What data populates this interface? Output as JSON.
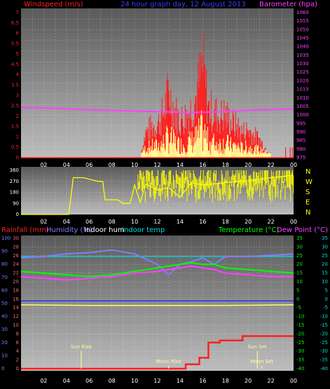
{
  "header": {
    "windspeed_label": "Windspeed (m/s)",
    "title": "24 hour graph day, 12 August 2013",
    "barometer_label": "Barometer (hpa)"
  },
  "bottom_header": {
    "rainfall_label": "Rainfall (mm)",
    "humidity_label": "Humidity (%)",
    "indoor_hum_label": "Indoor hum",
    "indoor_temp_label": "Indoor temp",
    "temperature_label": "Temperature (°C)",
    "dewpoint_label": "Dew Point (°C)"
  },
  "colors": {
    "windspeed": "#ff2020",
    "gust": "#ff2020",
    "avgwind": "#ffff99",
    "winddir": "#ffff00",
    "barometer": "#ff40ff",
    "rain": "#ff2020",
    "humidity": "#7f7fff",
    "indoor_hum": "#ffff66",
    "indoor_temp": "#00dddd",
    "temperature": "#00ff00",
    "dewpoint": "#ff40ff",
    "sun": "#ffff99"
  },
  "chart_data": [
    {
      "type": "line",
      "name": "wind-barometer",
      "x_ticks": [
        "02",
        "04",
        "06",
        "08",
        "10",
        "12",
        "14",
        "16",
        "18",
        "20",
        "22",
        "00"
      ],
      "y_left_ticks": [
        "0",
        "0.5",
        "1",
        "1.5",
        "2",
        "2.5",
        "3",
        "3.5",
        "4",
        "4.5",
        "5",
        "5.5",
        "6",
        "6.5",
        "7"
      ],
      "y_right_ticks": [
        "975",
        "980",
        "985",
        "990",
        "995",
        "1000",
        "1005",
        "1010",
        "1015",
        "1020",
        "1025",
        "1030",
        "1035",
        "1040",
        "1045",
        "1050",
        "1055",
        "1060"
      ],
      "ylim_left": [
        0,
        7
      ],
      "ylim_right": [
        975,
        1060
      ],
      "xlim": [
        0,
        24
      ],
      "gust_envelope": [
        [
          10.6,
          0.5
        ],
        [
          11.0,
          1.8
        ],
        [
          11.5,
          2.2
        ],
        [
          12.0,
          2.3
        ],
        [
          12.5,
          3.1
        ],
        [
          13.0,
          4.6
        ],
        [
          13.5,
          3.4
        ],
        [
          14.0,
          2.6
        ],
        [
          14.5,
          3.0
        ],
        [
          15.0,
          3.5
        ],
        [
          15.5,
          4.5
        ],
        [
          16.0,
          6.6
        ],
        [
          16.5,
          3.5
        ],
        [
          17.0,
          3.2
        ],
        [
          17.5,
          2.9
        ],
        [
          18.0,
          3.1
        ],
        [
          18.5,
          2.5
        ],
        [
          19.0,
          2.3
        ],
        [
          19.5,
          1.8
        ],
        [
          20.0,
          2.0
        ],
        [
          20.5,
          1.6
        ],
        [
          21.0,
          1.3
        ],
        [
          21.5,
          0.7
        ],
        [
          22.0,
          0.4
        ]
      ],
      "barometer": {
        "x": [
          0,
          3,
          6,
          9,
          12,
          15,
          18,
          21,
          24
        ],
        "y": [
          1004.5,
          1004,
          1003,
          1002.5,
          1002,
          1001.5,
          1002,
          1003,
          1003.5
        ]
      }
    },
    {
      "type": "scatter",
      "name": "wind-direction",
      "x_ticks": [
        "02",
        "04",
        "06",
        "08",
        "10",
        "12",
        "14",
        "16",
        "18",
        "20",
        "22",
        "00"
      ],
      "y_ticks": [
        "0",
        "90",
        "180",
        "270",
        "360"
      ],
      "compass": [
        "N",
        "W",
        "S",
        "E",
        "N"
      ],
      "ylim": [
        0,
        360
      ],
      "xlim": [
        0,
        24
      ],
      "points": {
        "x": [
          0,
          4.2,
          4.6,
          5.5,
          6.8,
          7.2,
          7.4,
          8.5,
          9.0,
          9.6,
          10.0,
          10.5,
          11.0,
          12.0,
          13.0,
          14.0,
          15.0,
          16.0,
          17.0,
          18.0,
          19.0,
          20.0,
          21.0,
          22.0,
          23.0,
          24.0
        ],
        "y": [
          0,
          0,
          300,
          300,
          270,
          270,
          120,
          120,
          90,
          90,
          240,
          100,
          250,
          200,
          220,
          140,
          260,
          240,
          250,
          260,
          270,
          275,
          285,
          300,
          310,
          320
        ]
      }
    },
    {
      "type": "line",
      "name": "temp-humidity-rain",
      "x_ticks": [
        "02",
        "04",
        "06",
        "08",
        "10",
        "12",
        "14",
        "16",
        "18",
        "20",
        "22",
        "00"
      ],
      "y_rain_ticks": [
        "0",
        "2",
        "4",
        "6",
        "8",
        "10",
        "12",
        "14",
        "16",
        "18",
        "20",
        "22",
        "24",
        "26",
        "28",
        "30"
      ],
      "y_hum_ticks": [
        "0",
        "10",
        "20",
        "30",
        "40",
        "50",
        "60",
        "70",
        "80",
        "90",
        "100"
      ],
      "y_temp_ticks": [
        "-40",
        "-35",
        "-30",
        "-25",
        "-20",
        "-15",
        "-10",
        "-5",
        "0",
        "5",
        "10",
        "15",
        "20",
        "25",
        "30",
        "35"
      ],
      "xlim": [
        0,
        24
      ],
      "annotations": [
        {
          "text": "Sun Rise",
          "x": 5.3
        },
        {
          "text": "Moon Rise",
          "x": 13.0
        },
        {
          "text": "Sun Set",
          "x": 20.8
        },
        {
          "text": "Moon Set",
          "x": 21.2
        }
      ],
      "rain": {
        "x": [
          0,
          14,
          14.5,
          15,
          15.7,
          16.5,
          17.5,
          19.5,
          22,
          24
        ],
        "y": [
          0,
          0,
          1,
          1,
          2.5,
          6,
          6.5,
          7.5,
          7.5,
          7.5
        ]
      },
      "humidity": {
        "x": [
          0,
          2,
          4,
          6,
          8,
          10,
          12,
          13,
          14,
          15,
          16,
          17,
          18,
          20,
          22,
          24
        ],
        "y": [
          85,
          86,
          88,
          89,
          91,
          88,
          80,
          72,
          80,
          82,
          85,
          80,
          86,
          86,
          87,
          88
        ]
      },
      "indoor_hum": {
        "x": [
          0,
          6,
          12,
          18,
          24
        ],
        "y": [
          49,
          48.5,
          48.5,
          48.5,
          49
        ]
      },
      "indoor_temp": {
        "x": [
          0,
          24
        ],
        "y": [
          24.5,
          24.5
        ]
      },
      "temperature": {
        "x": [
          0,
          2,
          4,
          6,
          8,
          10,
          12,
          13,
          14,
          15,
          16,
          17,
          18,
          20,
          22,
          24
        ],
        "y": [
          16,
          15,
          14,
          13,
          14,
          16,
          18,
          19,
          20,
          21,
          20,
          20,
          18,
          17,
          16,
          15
        ]
      },
      "dewpoint": {
        "x": [
          0,
          2,
          4,
          6,
          8,
          10,
          12,
          13,
          14,
          15,
          16,
          17,
          18,
          20,
          22,
          24
        ],
        "y": [
          13,
          12,
          11,
          12,
          13,
          15,
          16,
          17,
          18,
          19,
          18,
          17,
          15,
          14,
          13,
          13
        ]
      }
    }
  ]
}
